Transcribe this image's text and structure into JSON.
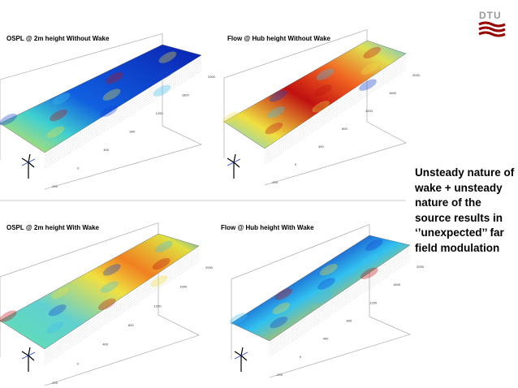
{
  "logo": "DTU",
  "panels": [
    {
      "title": "OSPL @ 2m height Without Wake",
      "ticks": [
        "2000",
        "1600",
        "1200",
        "800",
        "400",
        "0",
        "-200"
      ]
    },
    {
      "title": "Flow @ Hub height  Without Wake",
      "ticks": [
        "2000",
        "1600",
        "1200",
        "800",
        "400",
        "0",
        "-200"
      ]
    },
    {
      "title": "OSPL @ 2m height With Wake",
      "ticks": [
        "2000",
        "1600",
        "1200",
        "800",
        "400",
        "0",
        "-200"
      ]
    },
    {
      "title": "Flow @ Hub height With Wake",
      "ticks": [
        "2000",
        "1600",
        "1200",
        "800",
        "400",
        "0",
        "-200"
      ]
    }
  ],
  "caption": [
    "Unsteady nature of",
    "wake + unsteady",
    "nature of the",
    "source results in",
    "‘’unexpected’’ far",
    "field modulation"
  ]
}
